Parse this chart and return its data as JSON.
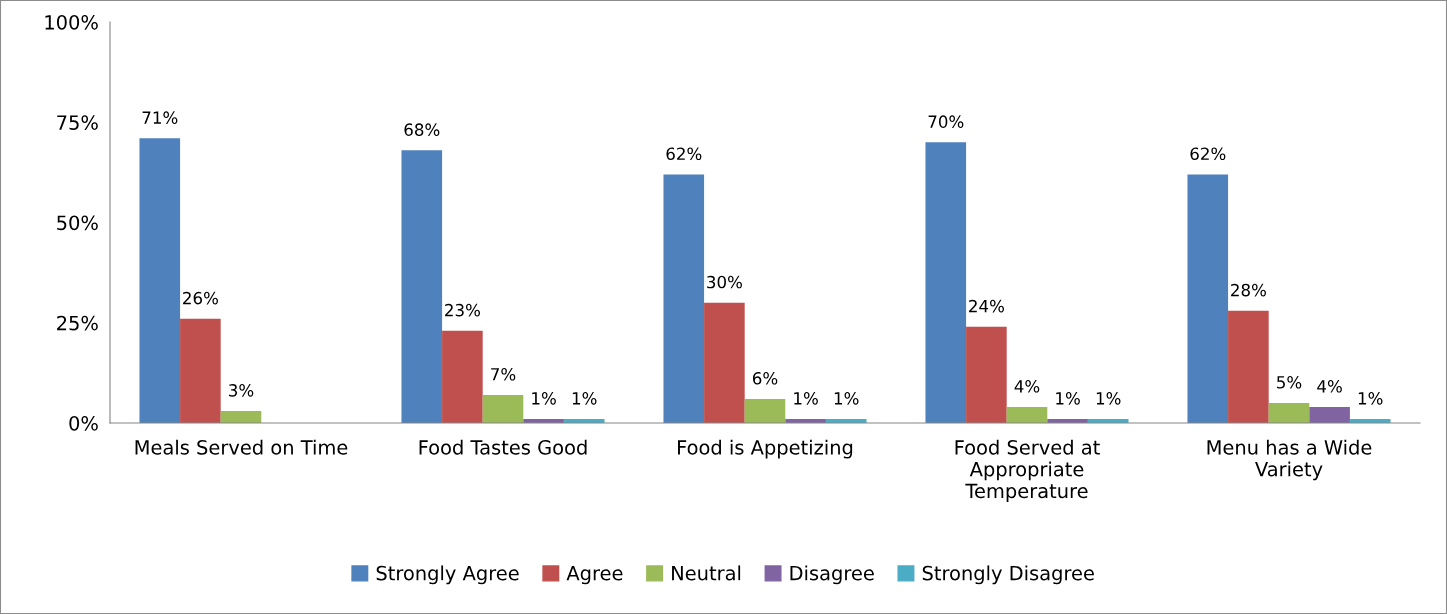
{
  "chart_data": {
    "type": "bar",
    "categories": [
      "Meals Served on Time",
      "Food Tastes Good",
      "Food is Appetizing",
      "Food Served at\nAppropriate\nTemperature",
      "Menu has a Wide\nVariety"
    ],
    "series": [
      {
        "name": "Strongly Agree",
        "color": "#4f81bd",
        "values": [
          71,
          68,
          62,
          70,
          62
        ],
        "value_labels": [
          "71%",
          "68%",
          "62%",
          "70%",
          "62%"
        ]
      },
      {
        "name": "Agree",
        "color": "#c0504d",
        "values": [
          26,
          23,
          30,
          24,
          28
        ],
        "value_labels": [
          "26%",
          "23%",
          "30%",
          "24%",
          "28%"
        ]
      },
      {
        "name": "Neutral",
        "color": "#9bbb59",
        "values": [
          3,
          7,
          6,
          4,
          5
        ],
        "value_labels": [
          "3%",
          "7%",
          "6%",
          "4%",
          "5%"
        ]
      },
      {
        "name": "Disagree",
        "color": "#8064a2",
        "values": [
          null,
          1,
          1,
          1,
          4
        ],
        "value_labels": [
          null,
          "1%",
          "1%",
          "1%",
          "4%"
        ]
      },
      {
        "name": "Strongly Disagree",
        "color": "#4bacc6",
        "values": [
          null,
          1,
          1,
          1,
          1
        ],
        "value_labels": [
          null,
          "1%",
          "1%",
          "1%",
          "1%"
        ]
      }
    ],
    "ylim": [
      0,
      100
    ],
    "yticks": [
      {
        "value": 0,
        "label": "0%"
      },
      {
        "value": 25,
        "label": "25%"
      },
      {
        "value": 50,
        "label": "50%"
      },
      {
        "value": 75,
        "label": "75%"
      },
      {
        "value": 100,
        "label": "100%"
      }
    ],
    "grid": false,
    "legend": "bottom"
  }
}
